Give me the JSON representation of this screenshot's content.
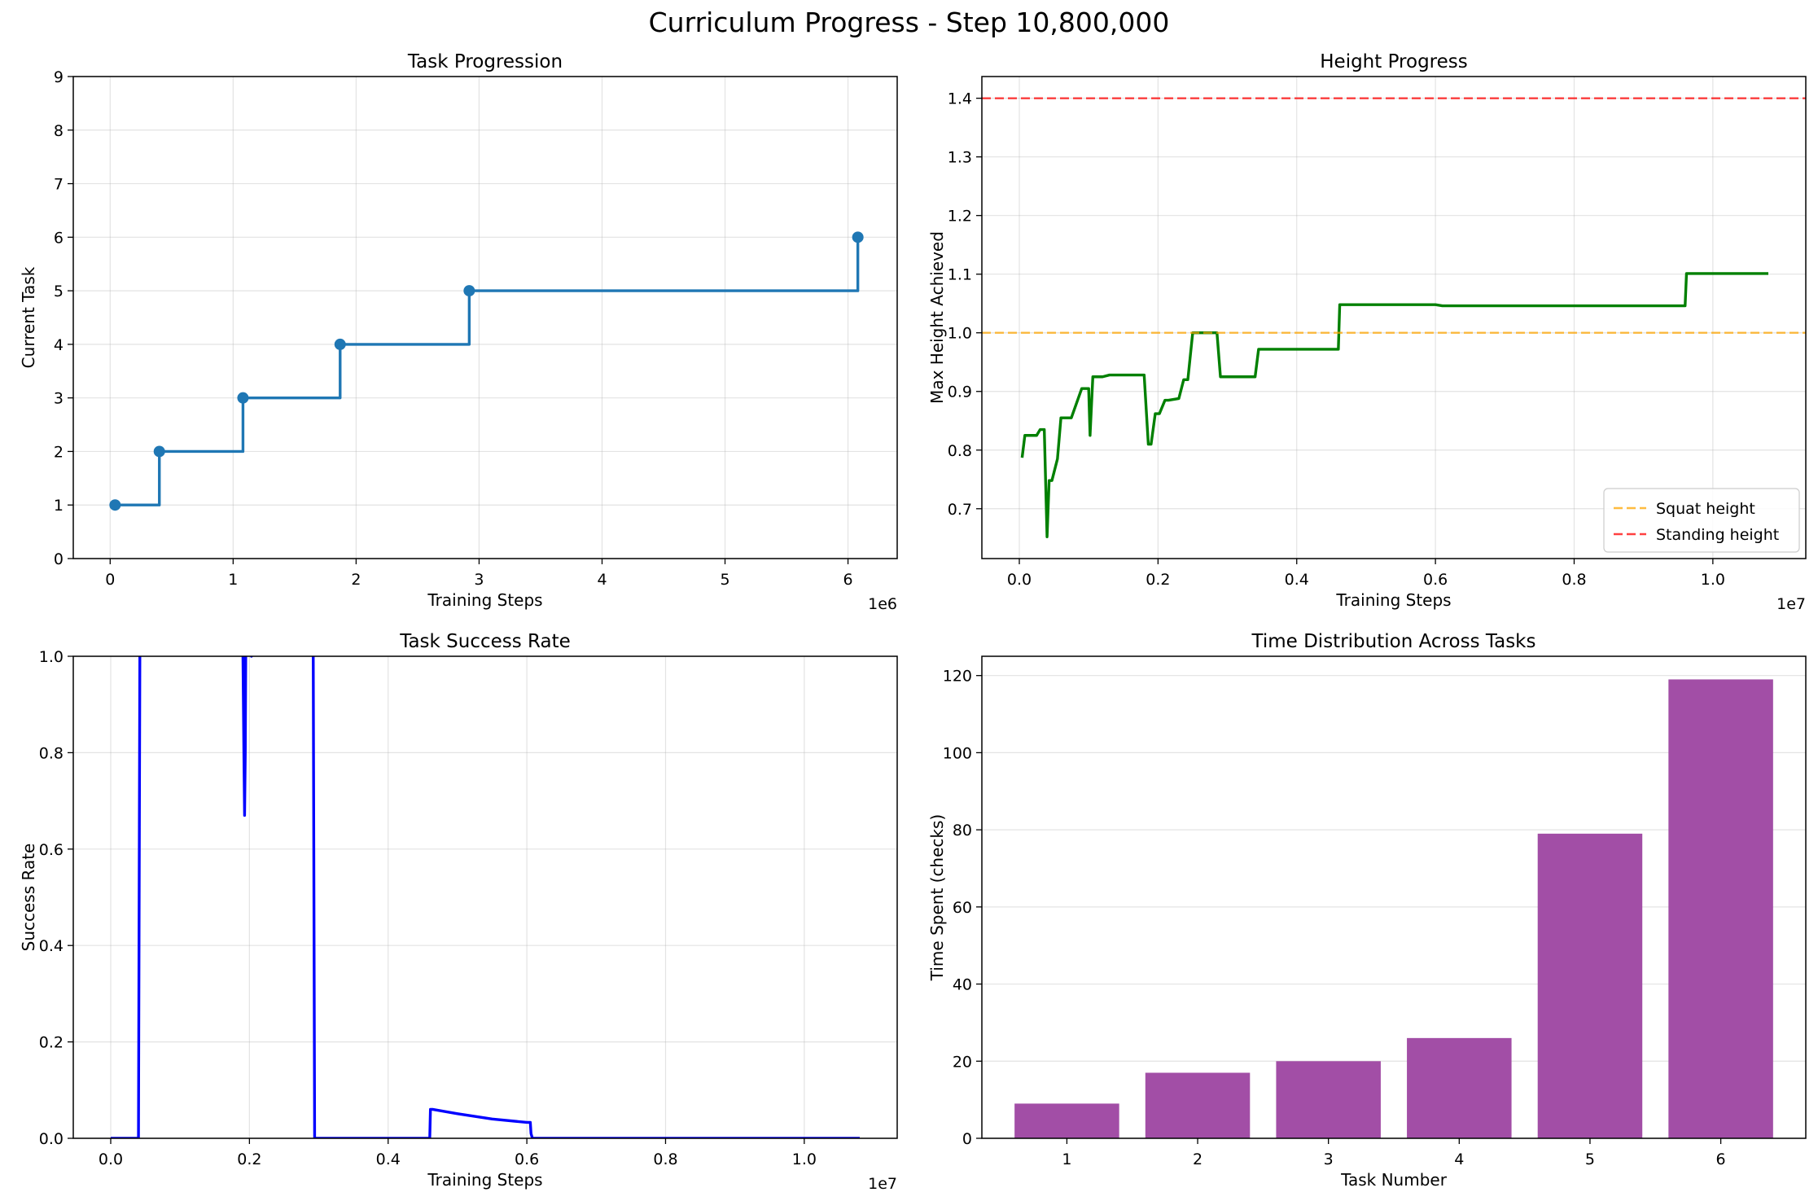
{
  "figure": {
    "title": "Curriculum Progress - Step 10,800,000"
  },
  "chart_data": [
    {
      "id": "task_progression",
      "type": "line",
      "drawstyle": "steps-post",
      "title": "Task Progression",
      "xlabel": "Training Steps",
      "ylabel": "Current Task",
      "x_scale_label": "1e6",
      "xlim": [
        -0.3,
        6.4
      ],
      "ylim": [
        0,
        9
      ],
      "xticks": [
        0,
        1,
        2,
        3,
        4,
        5,
        6
      ],
      "xtick_labels": [
        "0",
        "1",
        "2",
        "3",
        "4",
        "5",
        "6"
      ],
      "yticks": [
        0,
        1,
        2,
        3,
        4,
        5,
        6,
        7,
        8,
        9
      ],
      "ytick_labels": [
        "0",
        "1",
        "2",
        "3",
        "4",
        "5",
        "6",
        "7",
        "8",
        "9"
      ],
      "grid": true,
      "color": "#1f77b4",
      "series": [
        {
          "x": [
            0.04,
            0.4,
            1.08,
            1.87,
            2.92,
            6.08
          ],
          "y": [
            1,
            2,
            3,
            4,
            5,
            6
          ],
          "marker": "circle"
        }
      ]
    },
    {
      "id": "height_progress",
      "type": "line",
      "title": "Height Progress",
      "xlabel": "Training Steps",
      "ylabel": "Max Height Achieved",
      "x_scale_label": "1e7",
      "xlim": [
        -0.054,
        1.134
      ],
      "ylim": [
        0.615,
        1.437
      ],
      "xticks": [
        0.0,
        0.2,
        0.4,
        0.6,
        0.8,
        1.0
      ],
      "xtick_labels": [
        "0.0",
        "0.2",
        "0.4",
        "0.6",
        "0.8",
        "1.0"
      ],
      "yticks": [
        0.7,
        0.8,
        0.9,
        1.0,
        1.1,
        1.2,
        1.3,
        1.4
      ],
      "ytick_labels": [
        "0.7",
        "0.8",
        "0.9",
        "1.0",
        "1.1",
        "1.2",
        "1.3",
        "1.4"
      ],
      "grid": true,
      "legend_position": "bottom-right",
      "series": [
        {
          "color": "#008000",
          "x": [
            0.004,
            0.008,
            0.025,
            0.03,
            0.036,
            0.04,
            0.043,
            0.047,
            0.055,
            0.06,
            0.064,
            0.068,
            0.075,
            0.09,
            0.092,
            0.1,
            0.102,
            0.106,
            0.109,
            0.112,
            0.12,
            0.13,
            0.135,
            0.18,
            0.186,
            0.19,
            0.196,
            0.202,
            0.21,
            0.215,
            0.23,
            0.237,
            0.243,
            0.25,
            0.253,
            0.285,
            0.29,
            0.34,
            0.345,
            0.46,
            0.462,
            0.6,
            0.61,
            0.96,
            0.962,
            1.08
          ],
          "y": [
            0.787,
            0.825,
            0.825,
            0.835,
            0.835,
            0.652,
            0.748,
            0.748,
            0.785,
            0.855,
            0.855,
            0.855,
            0.855,
            0.905,
            0.905,
            0.905,
            0.825,
            0.925,
            0.925,
            0.925,
            0.925,
            0.928,
            0.928,
            0.928,
            0.81,
            0.81,
            0.862,
            0.862,
            0.885,
            0.885,
            0.888,
            0.92,
            0.92,
            1.0,
            1.0,
            1.0,
            0.925,
            0.925,
            0.972,
            0.972,
            1.048,
            1.048,
            1.046,
            1.046,
            1.101,
            1.101
          ]
        },
        {
          "name": "Squat height",
          "color": "#ffa500",
          "dashed": true,
          "hline": 1.0
        },
        {
          "name": "Standing height",
          "color": "#ff0000",
          "dashed": true,
          "hline": 1.4
        }
      ]
    },
    {
      "id": "task_success_rate",
      "type": "line",
      "title": "Task Success Rate",
      "xlabel": "Training Steps",
      "ylabel": "Success Rate",
      "x_scale_label": "1e7",
      "xlim": [
        -0.054,
        1.134
      ],
      "ylim": [
        0,
        1
      ],
      "xticks": [
        0.0,
        0.2,
        0.4,
        0.6,
        0.8,
        1.0
      ],
      "xtick_labels": [
        "0.0",
        "0.2",
        "0.4",
        "0.6",
        "0.8",
        "1.0"
      ],
      "yticks": [
        0.0,
        0.2,
        0.4,
        0.6,
        0.8,
        1.0
      ],
      "ytick_labels": [
        "0.0",
        "0.2",
        "0.4",
        "0.6",
        "0.8",
        "1.0"
      ],
      "grid": true,
      "color": "#0000ff",
      "series": [
        {
          "x": [
            0.0,
            0.04,
            0.041,
            0.042,
            0.043,
            0.044,
            0.045
          ],
          "y": [
            0,
            0,
            0.5,
            1.0,
            1.05,
            1.1,
            1.2
          ]
        },
        {
          "x": [
            0.19,
            0.191,
            0.192,
            0.193,
            0.194,
            0.195
          ],
          "y": [
            1.1,
            0.95,
            0.8,
            0.67,
            0.8,
            1.1
          ]
        },
        {
          "x": [
            0.2,
            0.203,
            0.207
          ],
          "y": [
            1.02,
            1.0,
            1.02
          ]
        },
        {
          "x": [
            0.291,
            0.292,
            0.293,
            0.294,
            0.46,
            0.461,
            0.464,
            0.5,
            0.55,
            0.6,
            0.605,
            0.606,
            0.608,
            1.08
          ],
          "y": [
            1.2,
            1.0,
            0.5,
            0,
            0,
            0.06,
            0.06,
            0.051,
            0.04,
            0.033,
            0.033,
            0.01,
            0,
            0
          ]
        }
      ]
    },
    {
      "id": "time_distribution",
      "type": "bar",
      "title": "Time Distribution Across Tasks",
      "xlabel": "Task Number",
      "ylabel": "Time Spent (checks)",
      "categories": [
        "1",
        "2",
        "3",
        "4",
        "5",
        "6"
      ],
      "values": [
        9,
        17,
        20,
        26,
        79,
        119
      ],
      "ylim": [
        0,
        125
      ],
      "yticks": [
        0,
        20,
        40,
        60,
        80,
        100,
        120
      ],
      "ytick_labels": [
        "0",
        "20",
        "40",
        "60",
        "80",
        "100",
        "120"
      ],
      "grid": true,
      "color": "#a24ea6"
    }
  ]
}
